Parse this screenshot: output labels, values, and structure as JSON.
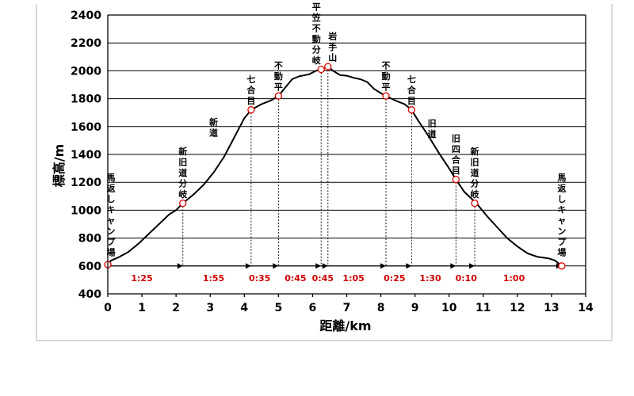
{
  "chart_data": {
    "type": "line",
    "ylabel": "標高/m",
    "xlabel": "距離/km",
    "xlim": [
      0,
      14
    ],
    "ylim": [
      400,
      2400
    ],
    "xticks": [
      0,
      1,
      2,
      3,
      4,
      5,
      6,
      7,
      8,
      9,
      10,
      11,
      12,
      13,
      14
    ],
    "yticks": [
      400,
      600,
      800,
      1000,
      1200,
      1400,
      1600,
      1800,
      2000,
      2200,
      2400
    ],
    "grid": "horizontal",
    "profile": {
      "x": [
        0,
        0.1,
        0.3,
        0.6,
        0.9,
        1.2,
        1.5,
        1.8,
        2.0,
        2.2,
        2.5,
        2.8,
        3.1,
        3.4,
        3.7,
        4.0,
        4.2,
        4.5,
        4.8,
        5.0,
        5.2,
        5.4,
        5.6,
        5.9,
        6.1,
        6.25,
        6.45,
        6.6,
        6.8,
        7.0,
        7.2,
        7.4,
        7.6,
        7.8,
        8.0,
        8.15,
        8.4,
        8.7,
        8.9,
        9.1,
        9.4,
        9.7,
        10.0,
        10.2,
        10.45,
        10.8,
        11.1,
        11.4,
        11.7,
        12.0,
        12.3,
        12.6,
        12.9,
        13.1,
        13.3
      ],
      "y": [
        610,
        640,
        660,
        700,
        760,
        830,
        900,
        970,
        1000,
        1050,
        1110,
        1180,
        1270,
        1380,
        1520,
        1660,
        1720,
        1760,
        1790,
        1820,
        1880,
        1940,
        1960,
        1975,
        2000,
        2010,
        2030,
        2000,
        1970,
        1965,
        1950,
        1940,
        1920,
        1870,
        1840,
        1820,
        1790,
        1760,
        1720,
        1640,
        1530,
        1410,
        1300,
        1220,
        1130,
        1050,
        960,
        880,
        800,
        740,
        690,
        665,
        655,
        640,
        600
      ]
    },
    "points": [
      {
        "x": 0.0,
        "y": 610,
        "label": "馬返しキャンプ場"
      },
      {
        "x": 2.2,
        "y": 1050,
        "label": "新旧道分岐"
      },
      {
        "x": 4.2,
        "y": 1720,
        "label": "七合目"
      },
      {
        "x": 5.0,
        "y": 1820,
        "label": "不動平"
      },
      {
        "x": 6.25,
        "y": 2010,
        "label": "平笠不動分岐"
      },
      {
        "x": 6.45,
        "y": 2030,
        "label": "岩手山"
      },
      {
        "x": 8.15,
        "y": 1820,
        "label": "不動平"
      },
      {
        "x": 8.9,
        "y": 1720,
        "label": "七合目"
      },
      {
        "x": 10.2,
        "y": 1220,
        "label": "旧四合目"
      },
      {
        "x": 10.75,
        "y": 1050,
        "label": "新旧道分岐"
      },
      {
        "x": 13.3,
        "y": 600,
        "label": "馬返しキャンプ場"
      }
    ],
    "route_annotations": [
      {
        "x": 3.1,
        "y": 1600,
        "label": "新道"
      },
      {
        "x": 9.5,
        "y": 1590,
        "label": "旧道"
      }
    ],
    "segments": [
      {
        "x": 1.0,
        "label": "1:25"
      },
      {
        "x": 3.1,
        "label": "1:55"
      },
      {
        "x": 4.45,
        "label": "0:35"
      },
      {
        "x": 5.5,
        "label": "0:45"
      },
      {
        "x": 6.3,
        "label": "0:45"
      },
      {
        "x": 7.2,
        "label": "1:05"
      },
      {
        "x": 8.4,
        "label": "0:25"
      },
      {
        "x": 9.45,
        "label": "1:30"
      },
      {
        "x": 10.5,
        "label": "0:10"
      },
      {
        "x": 11.9,
        "label": "1:00"
      }
    ]
  }
}
